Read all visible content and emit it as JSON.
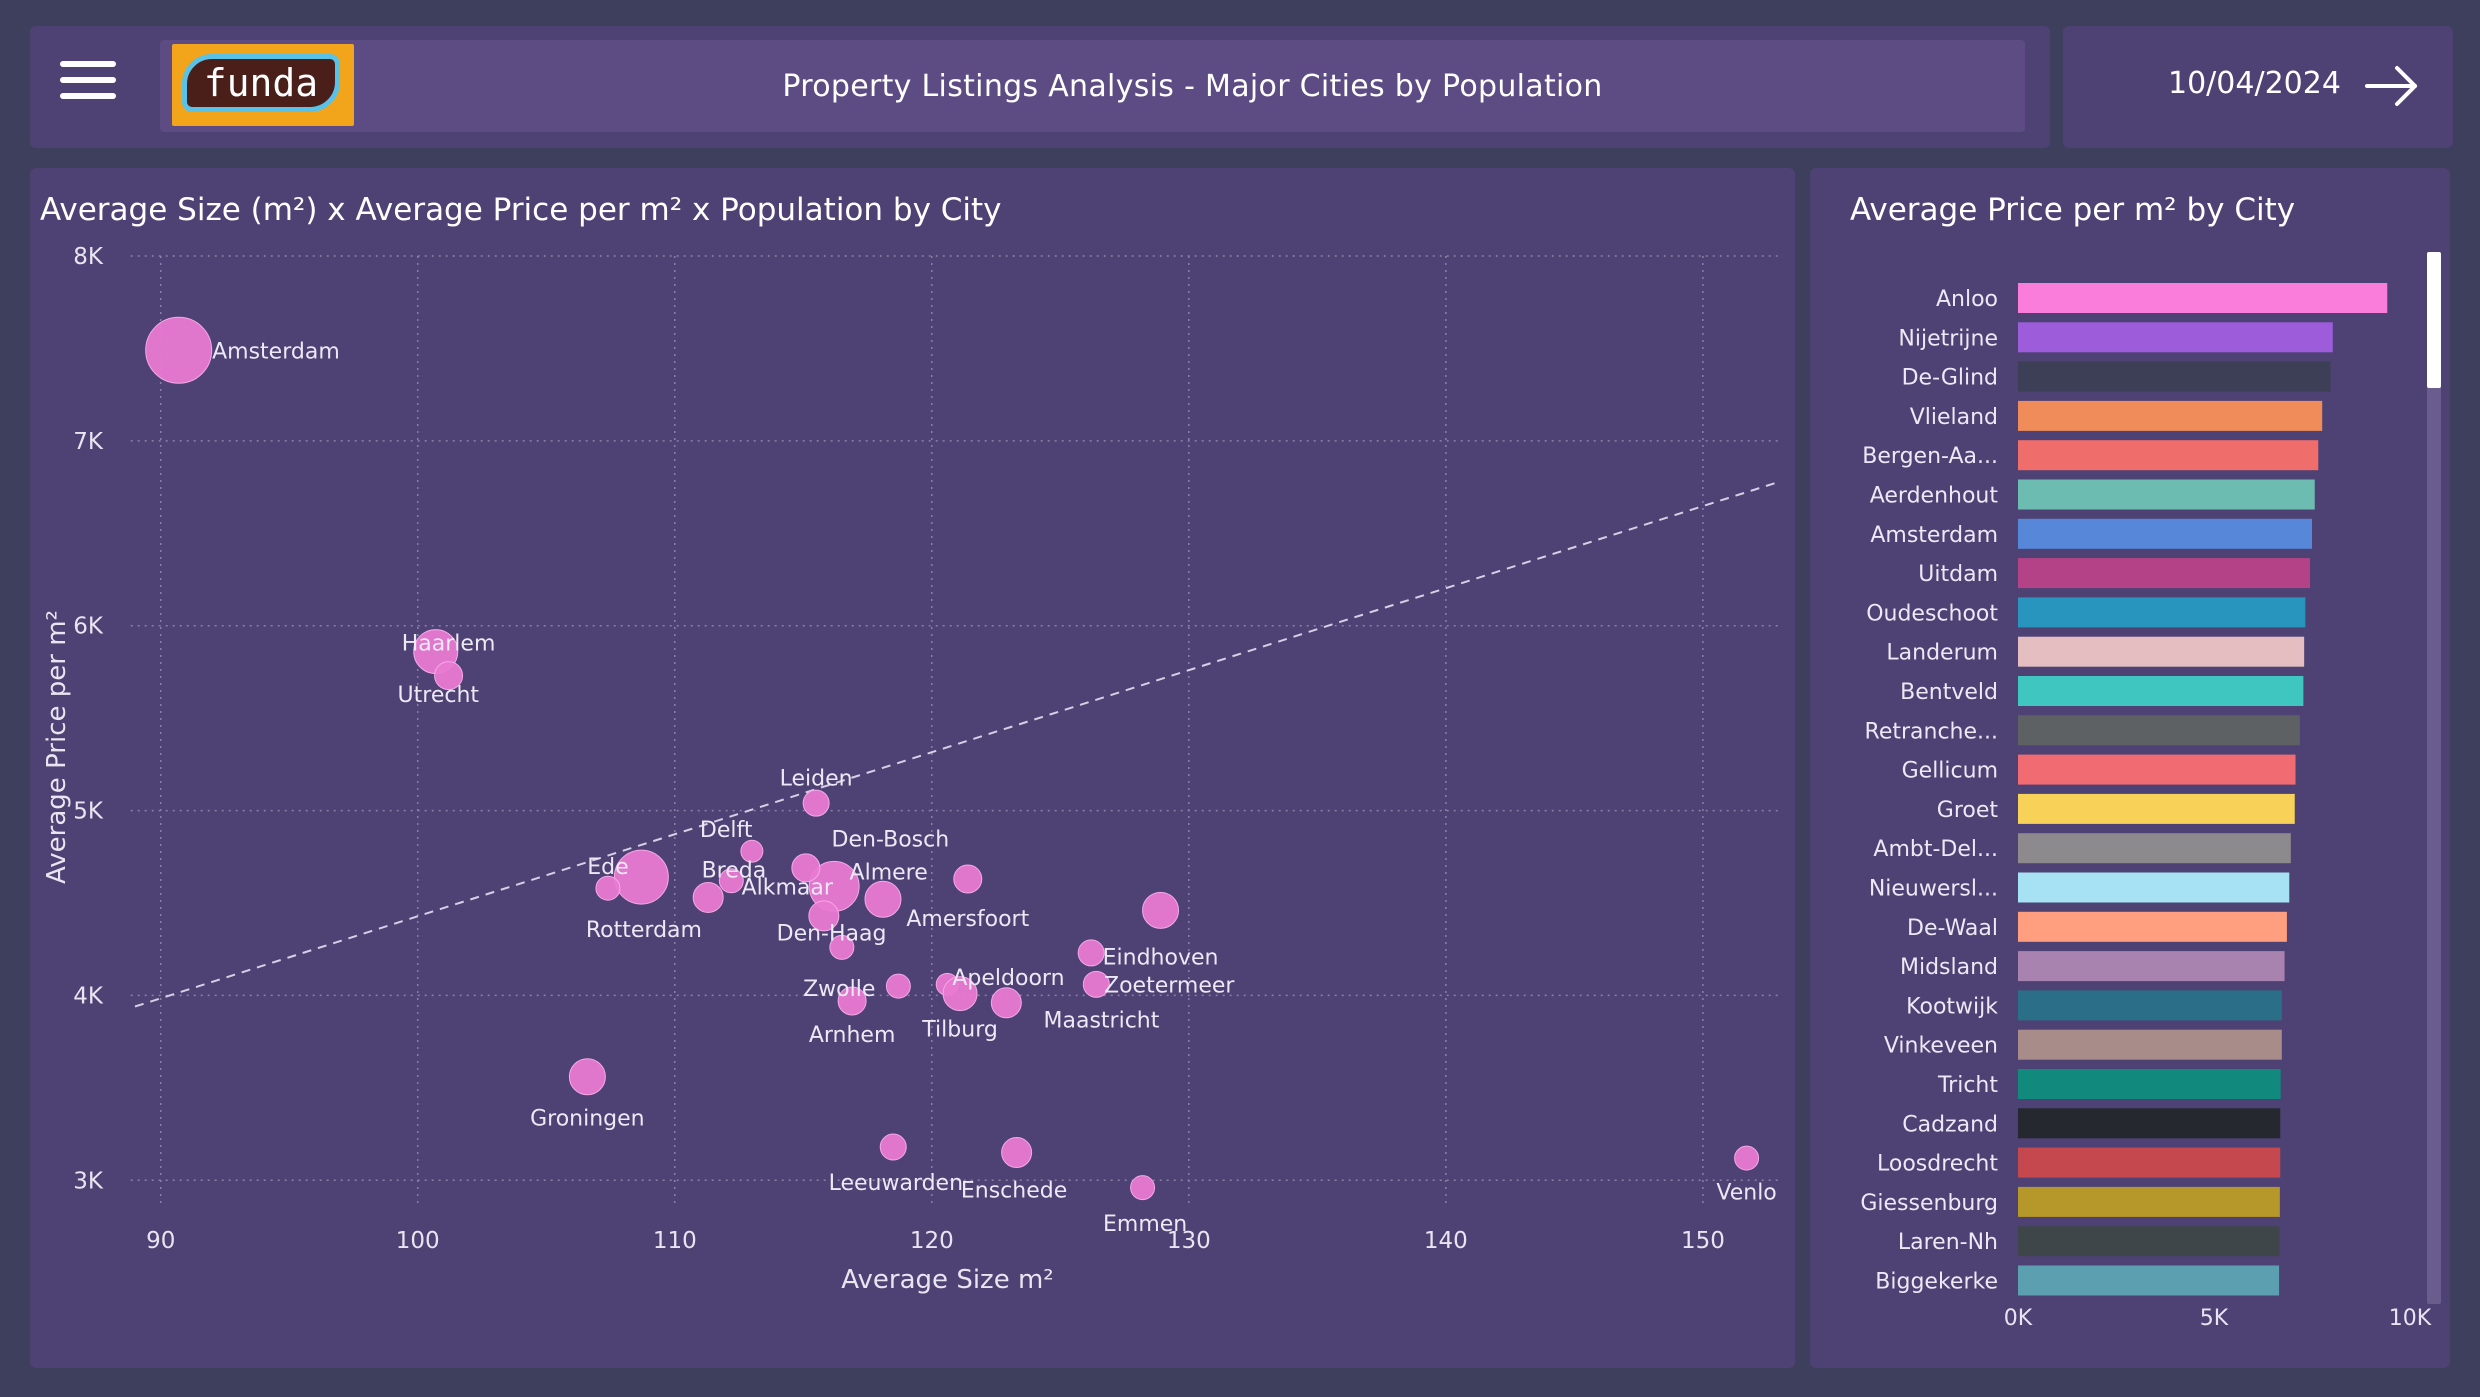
{
  "header": {
    "logo_text": "funda",
    "title": "Property Listings Analysis - Major Cities by Population",
    "date": "10/04/2024",
    "menu_icon": "hamburger-menu-icon",
    "next_icon": "arrow-right-icon"
  },
  "colors": {
    "background": "#3e3f5c",
    "panel": "#4e4174",
    "bubble": "#e97ad2",
    "trendline": "#d6cfe6"
  },
  "chart_data": [
    {
      "type": "scatter",
      "title": "Average Size (m²) x Average Price per m² x Population by City",
      "xlabel": "Average Size m²",
      "ylabel": "Average Price per m²",
      "xlim": [
        89,
        153
      ],
      "ylim": [
        2850,
        8000
      ],
      "xticks": [
        90,
        100,
        110,
        120,
        130,
        140,
        150
      ],
      "yticks": [
        {
          "value": 3000,
          "label": "3K"
        },
        {
          "value": 4000,
          "label": "4K"
        },
        {
          "value": 5000,
          "label": "5K"
        },
        {
          "value": 6000,
          "label": "6K"
        },
        {
          "value": 7000,
          "label": "7K"
        },
        {
          "value": 8000,
          "label": "8K"
        }
      ],
      "grid": true,
      "trendline": {
        "x": [
          89,
          153
        ],
        "y": [
          3940,
          6780
        ]
      },
      "points": [
        {
          "x": 90.7,
          "y": 7490,
          "r": 33,
          "label": "Amsterdam",
          "lx": 92,
          "ly": 7490,
          "anchor": "start"
        },
        {
          "x": 100.7,
          "y": 5860,
          "r": 22,
          "label": "Haarlem",
          "lx": 101.2,
          "ly": 5910,
          "anchor": "middle"
        },
        {
          "x": 101.2,
          "y": 5730,
          "r": 14,
          "label": "Utrecht",
          "lx": 100.8,
          "ly": 5630,
          "anchor": "middle"
        },
        {
          "x": 115.5,
          "y": 5040,
          "r": 13,
          "label": "Leiden",
          "lx": 115.5,
          "ly": 5180,
          "anchor": "middle"
        },
        {
          "x": 113.0,
          "y": 4780,
          "r": 11,
          "label": "Delft",
          "lx": 112.0,
          "ly": 4900,
          "anchor": "middle"
        },
        {
          "x": 116.2,
          "y": 4590,
          "r": 25,
          "label": "Den-Bosch",
          "lx": 116.1,
          "ly": 4850,
          "anchor": "start"
        },
        {
          "x": 115.1,
          "y": 4690,
          "r": 14,
          "label": "Almere",
          "lx": 116.8,
          "ly": 4670,
          "anchor": "start"
        },
        {
          "x": 108.7,
          "y": 4640,
          "r": 27,
          "label": "Ede",
          "lx": 107.4,
          "ly": 4700,
          "anchor": "middle"
        },
        {
          "x": 107.4,
          "y": 4580,
          "r": 12,
          "label": "Rotterdam",
          "lx": 108.8,
          "ly": 4360,
          "anchor": "middle"
        },
        {
          "x": 111.3,
          "y": 4530,
          "r": 15,
          "label": "Breda",
          "lx": 112.3,
          "ly": 4680,
          "anchor": "middle"
        },
        {
          "x": 112.2,
          "y": 4620,
          "r": 12,
          "label": "Alkmaar",
          "lx": 112.6,
          "ly": 4590,
          "anchor": "start"
        },
        {
          "x": 118.1,
          "y": 4520,
          "r": 18,
          "label": "Amersfoort",
          "lx": 121.4,
          "ly": 4420,
          "anchor": "middle"
        },
        {
          "x": 121.4,
          "y": 4630,
          "r": 14,
          "label": "",
          "lx": 0,
          "ly": 0,
          "anchor": "middle"
        },
        {
          "x": 115.8,
          "y": 4430,
          "r": 15,
          "label": "Den-Haag",
          "lx": 116.1,
          "ly": 4340,
          "anchor": "middle"
        },
        {
          "x": 116.5,
          "y": 4260,
          "r": 12,
          "label": "",
          "lx": 0,
          "ly": 0,
          "anchor": "middle"
        },
        {
          "x": 128.9,
          "y": 4460,
          "r": 18,
          "label": "Eindhoven",
          "lx": 128.9,
          "ly": 4210,
          "anchor": "middle"
        },
        {
          "x": 126.2,
          "y": 4230,
          "r": 13,
          "label": "",
          "lx": 0,
          "ly": 0,
          "anchor": "middle"
        },
        {
          "x": 118.7,
          "y": 4050,
          "r": 12,
          "label": "Zwolle",
          "lx": 116.4,
          "ly": 4040,
          "anchor": "middle"
        },
        {
          "x": 116.9,
          "y": 3970,
          "r": 14,
          "label": "Arnhem",
          "lx": 116.9,
          "ly": 3790,
          "anchor": "middle"
        },
        {
          "x": 120.6,
          "y": 4060,
          "r": 11,
          "label": "Apeldoorn",
          "lx": 120.8,
          "ly": 4100,
          "anchor": "start"
        },
        {
          "x": 121.1,
          "y": 4010,
          "r": 17,
          "label": "Tilburg",
          "lx": 121.1,
          "ly": 3820,
          "anchor": "middle"
        },
        {
          "x": 122.9,
          "y": 3960,
          "r": 15,
          "label": "",
          "lx": 0,
          "ly": 0,
          "anchor": "middle"
        },
        {
          "x": 126.4,
          "y": 4060,
          "r": 13,
          "label": "Zoetermeer",
          "lx": 126.7,
          "ly": 4060,
          "anchor": "start"
        },
        {
          "x": 126.4,
          "y": 4060,
          "r": 0,
          "label": "Maastricht",
          "lx": 126.6,
          "ly": 3870,
          "anchor": "middle"
        },
        {
          "x": 106.6,
          "y": 3560,
          "r": 18,
          "label": "Groningen",
          "lx": 106.6,
          "ly": 3340,
          "anchor": "middle"
        },
        {
          "x": 118.5,
          "y": 3180,
          "r": 13,
          "label": "Leeuwarden",
          "lx": 118.6,
          "ly": 2990,
          "anchor": "middle"
        },
        {
          "x": 123.3,
          "y": 3150,
          "r": 15,
          "label": "Enschede",
          "lx": 123.2,
          "ly": 2950,
          "anchor": "middle"
        },
        {
          "x": 128.2,
          "y": 2960,
          "r": 12,
          "label": "Emmen",
          "lx": 128.3,
          "ly": 2770,
          "anchor": "middle"
        },
        {
          "x": 151.7,
          "y": 3120,
          "r": 12,
          "label": "Venlo",
          "lx": 151.7,
          "ly": 2940,
          "anchor": "middle"
        }
      ]
    },
    {
      "type": "bar",
      "orientation": "horizontal",
      "title": "Average Price per m² by City",
      "xlim": [
        0,
        10000
      ],
      "xticks": [
        {
          "value": 0,
          "label": "0K"
        },
        {
          "value": 5000,
          "label": "5K"
        },
        {
          "value": 10000,
          "label": "10K"
        }
      ],
      "categories": [
        "Anloo",
        "Nijetrijne",
        "De-Glind",
        "Vlieland",
        "Bergen-Aa...",
        "Aerdenhout",
        "Amsterdam",
        "Uitdam",
        "Oudeschoot",
        "Landerum",
        "Bentveld",
        "Retranche...",
        "Gellicum",
        "Groet",
        "Ambt-Del...",
        "Nieuwersl...",
        "De-Waal",
        "Midsland",
        "Kootwijk",
        "Vinkeveen",
        "Tricht",
        "Cadzand",
        "Loosdrecht",
        "Giessenburg",
        "Laren-Nh",
        "Biggekerke"
      ],
      "values": [
        9420,
        8030,
        7970,
        7760,
        7660,
        7570,
        7500,
        7450,
        7330,
        7300,
        7280,
        7190,
        7080,
        7060,
        6960,
        6920,
        6860,
        6800,
        6730,
        6730,
        6700,
        6690,
        6690,
        6680,
        6670,
        6660
      ],
      "colors": [
        "#fa7ddb",
        "#9d5ddb",
        "#3c3f56",
        "#f08c5a",
        "#ef6d6b",
        "#6cbcb2",
        "#5687d8",
        "#b44286",
        "#2795bd",
        "#e4bec0",
        "#3fc6c0",
        "#5e6164",
        "#f06b72",
        "#f7d158",
        "#8c8a8c",
        "#a7e2f4",
        "#ff9f7f",
        "#a983b0",
        "#2a6f87",
        "#a88c89",
        "#118a7d",
        "#25292f",
        "#c6484f",
        "#b6982a",
        "#3f4649",
        "#5c9fb1"
      ]
    }
  ]
}
